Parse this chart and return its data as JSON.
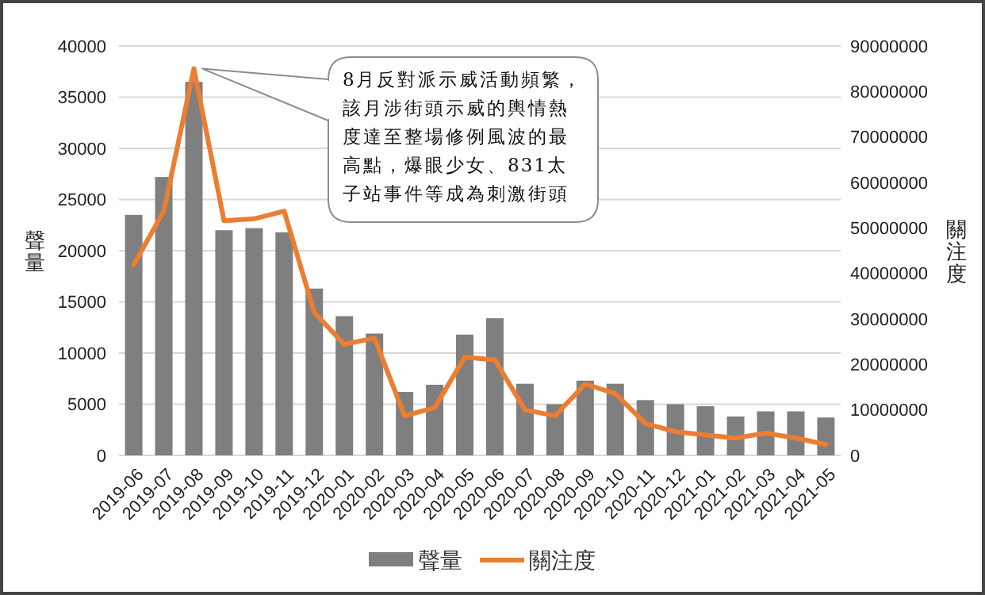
{
  "chart_data": {
    "type": "bar",
    "ylabel": "聲量",
    "y2label": "關注度",
    "categories": [
      "2019-06",
      "2019-07",
      "2019-08",
      "2019-09",
      "2019-10",
      "2019-11",
      "2019-12",
      "2020-01",
      "2020-02",
      "2020-03",
      "2020-04",
      "2020-05",
      "2020-06",
      "2020-07",
      "2020-08",
      "2020-09",
      "2020-10",
      "2020-11",
      "2020-12",
      "2021-01",
      "2021-02",
      "2021-03",
      "2021-04",
      "2021-05"
    ],
    "series": [
      {
        "name": "聲量",
        "color": "#7f7f7f",
        "values": [
          23500,
          27200,
          36500,
          22000,
          22200,
          21800,
          16300,
          13600,
          11900,
          6200,
          6900,
          11800,
          13400,
          7000,
          5000,
          7300,
          7000,
          5400,
          5000,
          4800,
          3800,
          4300,
          4300,
          3700
        ]
      },
      {
        "name": "關注度",
        "type": "line",
        "axis": "y2",
        "color": "#ed7d31",
        "values": [
          41900000,
          53700000,
          85000000,
          51600000,
          52000000,
          53700000,
          31400000,
          24400000,
          25800000,
          8700000,
          10500000,
          21600000,
          21000000,
          10000000,
          8700000,
          15700000,
          13600000,
          7000000,
          5200000,
          4500000,
          3800000,
          4900000,
          3800000,
          2400000
        ]
      }
    ],
    "ylim": [
      0,
      40000
    ],
    "yticks": [
      0,
      5000,
      10000,
      15000,
      20000,
      25000,
      30000,
      35000,
      40000
    ],
    "y2lim": [
      0,
      90000000
    ],
    "y2ticks": [
      {
        "value": 0,
        "label": "0"
      },
      {
        "value": 10000000,
        "label": "10000000"
      },
      {
        "value": 20000000,
        "label": "20000000"
      },
      {
        "value": 30000000,
        "label": "30000000"
      },
      {
        "value": 40000000,
        "label": "40000000"
      },
      {
        "value": 50000000,
        "label": "50000000"
      },
      {
        "value": 60000000,
        "label": "60000000"
      },
      {
        "value": 70000000,
        "label": "70000000"
      },
      {
        "value": 80000000,
        "label": "80000000"
      },
      {
        "value": 90000000,
        "label": "90000000"
      }
    ],
    "grid": "y",
    "legend": "bottom",
    "marker": "none",
    "line_style": "solid",
    "annotations": [
      {
        "text": "8月反對派示威活動頻繁，該月涉街頭示威的輿情熱度達至整場修例風波的最高點，爆眼少女、831太子站事件等成為刺激街頭",
        "x": "2019-08",
        "y": 37800
      }
    ]
  }
}
